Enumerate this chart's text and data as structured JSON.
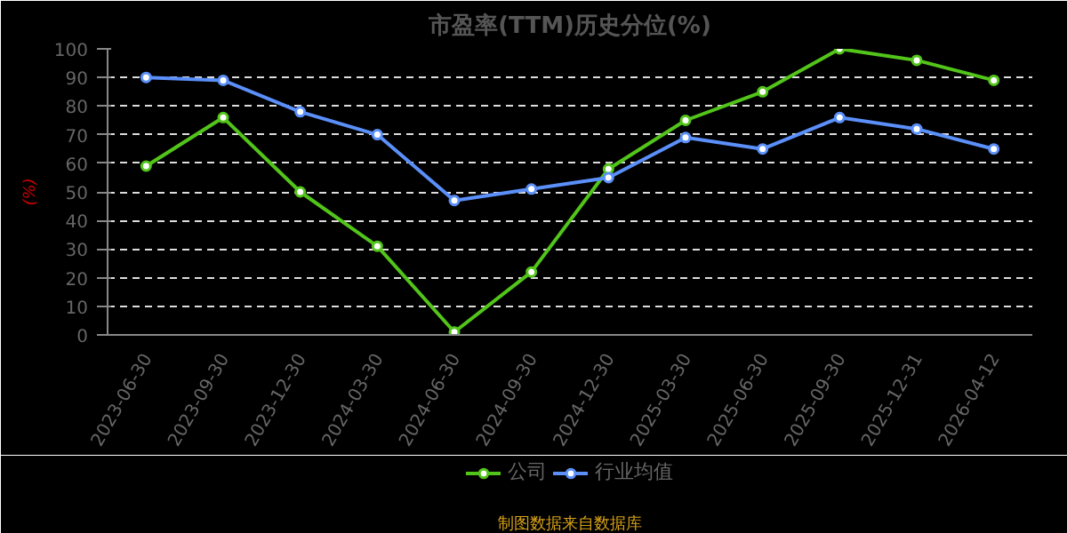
{
  "chart_data": {
    "type": "line",
    "title": "市盈率(TTM)历史分位(%)",
    "ylabel": "(%)",
    "categories": [
      "2023-06-30",
      "2023-09-30",
      "2023-12-30",
      "2024-03-30",
      "2024-06-30",
      "2024-09-30",
      "2024-12-30",
      "2025-03-30",
      "2025-06-30",
      "2025-09-30",
      "2025-12-31",
      "2026-04-12"
    ],
    "series": [
      {
        "name": "公司",
        "color": "#52c41a",
        "values": [
          59,
          76,
          50,
          31,
          1,
          22,
          58,
          75,
          85,
          100,
          96,
          89
        ]
      },
      {
        "name": "行业均值",
        "color": "#5b8ff9",
        "values": [
          90,
          89,
          78,
          70,
          47,
          51,
          55,
          69,
          65,
          76,
          72,
          65
        ]
      }
    ],
    "ylim": [
      0,
      100
    ],
    "yticks": [
      0,
      10,
      20,
      30,
      40,
      50,
      60,
      70,
      80,
      90,
      100
    ],
    "grid": "y",
    "legend": "bottom",
    "marker": "circle",
    "annotations": [
      "制图数据来自数据库"
    ]
  }
}
